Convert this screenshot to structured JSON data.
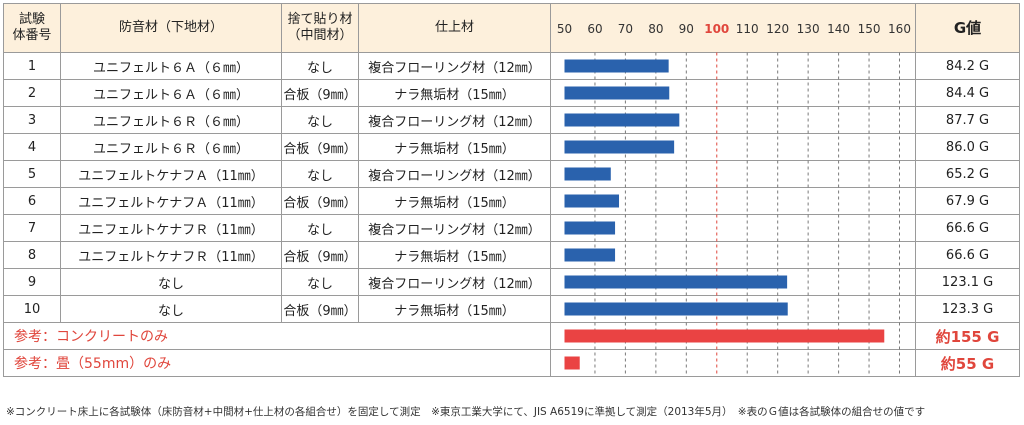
{
  "headers": {
    "id": "試験\n体番号",
    "bottom": "防音材（下地材）",
    "mid": "捨て貼り材\n（中間材）",
    "top": "仕上材",
    "g": "G値"
  },
  "rows": [
    {
      "id": "1",
      "bottom": "ユニフェルト６Ａ（６㎜）",
      "mid": "なし",
      "top": "複合フローリング材（12㎜）",
      "g": "84.2 G"
    },
    {
      "id": "2",
      "bottom": "ユニフェルト６Ａ（６㎜）",
      "mid": "合板（9㎜）",
      "top": "ナラ無垢材（15㎜）",
      "g": "84.4 G"
    },
    {
      "id": "3",
      "bottom": "ユニフェルト６Ｒ（６㎜）",
      "mid": "なし",
      "top": "複合フローリング材（12㎜）",
      "g": "87.7 G"
    },
    {
      "id": "4",
      "bottom": "ユニフェルト６Ｒ（６㎜）",
      "mid": "合板（9㎜）",
      "top": "ナラ無垢材（15㎜）",
      "g": "86.0 G"
    },
    {
      "id": "5",
      "bottom": "ユニフェルトケナフＡ（11㎜）",
      "mid": "なし",
      "top": "複合フローリング材（12㎜）",
      "g": "65.2 G"
    },
    {
      "id": "6",
      "bottom": "ユニフェルトケナフＡ（11㎜）",
      "mid": "合板（9㎜）",
      "top": "ナラ無垢材（15㎜）",
      "g": "67.9 G"
    },
    {
      "id": "7",
      "bottom": "ユニフェルトケナフＲ（11㎜）",
      "mid": "なし",
      "top": "複合フローリング材（12㎜）",
      "g": "66.6 G"
    },
    {
      "id": "8",
      "bottom": "ユニフェルトケナフＲ（11㎜）",
      "mid": "合板（9㎜）",
      "top": "ナラ無垢材（15㎜）",
      "g": "66.6 G"
    },
    {
      "id": "9",
      "bottom": "なし",
      "mid": "なし",
      "top": "複合フローリング材（12㎜）",
      "g": "123.1 G"
    },
    {
      "id": "10",
      "bottom": "なし",
      "mid": "合板（9㎜）",
      "top": "ナラ無垢材（15㎜）",
      "g": "123.3 G"
    }
  ],
  "references": [
    {
      "label": "参考：コンクリートのみ",
      "g": "約155 G"
    },
    {
      "label": "参考：畳（55mm）のみ",
      "g": "約55 G"
    }
  ],
  "footnote": "※コンクリート床上に各試験体（床防音材+中間材+仕上材の各組合せ）を固定して測定　※東京工業大学にて、JIS A6519に準拠して測定（2013年5月）　※表のＧ値は各試験体の組合せの値です",
  "chart_data": {
    "type": "bar",
    "orientation": "horizontal",
    "categories": [
      "1",
      "2",
      "3",
      "4",
      "5",
      "6",
      "7",
      "8",
      "9",
      "10",
      "参考：コンクリートのみ",
      "参考：畳（55mm）のみ"
    ],
    "values": [
      84.2,
      84.4,
      87.7,
      86.0,
      65.2,
      67.9,
      66.6,
      66.6,
      123.1,
      123.3,
      155,
      55
    ],
    "xlim": [
      50,
      160
    ],
    "ticks": [
      50,
      60,
      70,
      80,
      90,
      100,
      110,
      120,
      130,
      140,
      150,
      160
    ],
    "highlight_tick": 100,
    "grid": true,
    "colors": {
      "bar": "#2a62ad",
      "reference_bar": "#ea4343",
      "highlight": "#e0463c",
      "grid": "#7a7a7a"
    }
  }
}
